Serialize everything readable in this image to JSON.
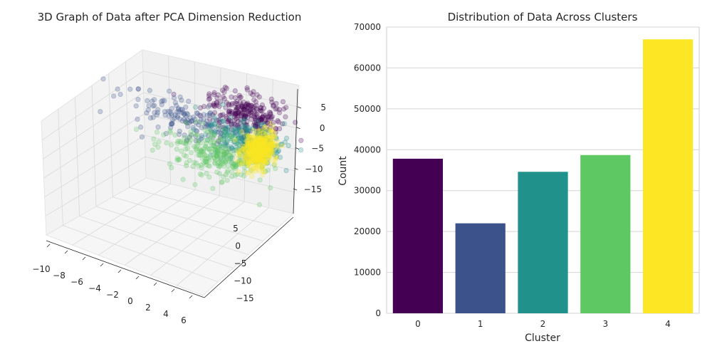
{
  "chart_data": [
    {
      "type": "scatter",
      "projection": "3d",
      "title": "3D Graph of Data after PCA Dimension Reduction",
      "x_ticks": [
        "−10",
        "−8",
        "−6",
        "−4",
        "−2",
        "0",
        "2",
        "4",
        "6"
      ],
      "y_ticks": [
        "−15",
        "−10",
        "−5",
        "0",
        "5"
      ],
      "z_ticks": [
        "5",
        "0",
        "−5",
        "−10",
        "−15"
      ],
      "xlim": [
        -10,
        6
      ],
      "ylim": [
        -17,
        7
      ],
      "zlim": [
        -18,
        8
      ],
      "grid": true,
      "point_alpha": 0.25,
      "clusters": [
        {
          "cluster": 0,
          "color": "#440154",
          "center": [
            2.5,
            3.0,
            3.5
          ],
          "spread": [
            1.8,
            2.0,
            1.2
          ],
          "count": 37800
        },
        {
          "cluster": 1,
          "color": "#3b528b",
          "center": [
            -3.0,
            0.5,
            0.5
          ],
          "spread": [
            3.0,
            1.5,
            1.3
          ],
          "count": 22000
        },
        {
          "cluster": 2,
          "color": "#21918c",
          "center": [
            3.5,
            0.5,
            0.5
          ],
          "spread": [
            1.8,
            1.8,
            1.6
          ],
          "count": 34600
        },
        {
          "cluster": 3,
          "color": "#5ec962",
          "center": [
            1.5,
            -2.0,
            -2.5
          ],
          "spread": [
            2.2,
            2.0,
            1.5
          ],
          "count": 38700
        },
        {
          "cluster": 4,
          "color": "#fde725",
          "center": [
            5.0,
            0.0,
            0.0
          ],
          "spread": [
            0.6,
            1.5,
            1.5
          ],
          "count": 67000
        }
      ]
    },
    {
      "type": "bar",
      "title": "Distribution of Data Across Clusters",
      "xlabel": "Cluster",
      "ylabel": "Count",
      "categories": [
        "0",
        "1",
        "2",
        "3",
        "4"
      ],
      "values": [
        37800,
        22000,
        34600,
        38700,
        67000
      ],
      "colors": [
        "#440154",
        "#3b528b",
        "#21918c",
        "#5ec962",
        "#fde725"
      ],
      "ylim": [
        0,
        70000
      ],
      "y_ticks": [
        "0",
        "10000",
        "20000",
        "30000",
        "40000",
        "50000",
        "60000",
        "70000"
      ],
      "grid": true
    }
  ]
}
